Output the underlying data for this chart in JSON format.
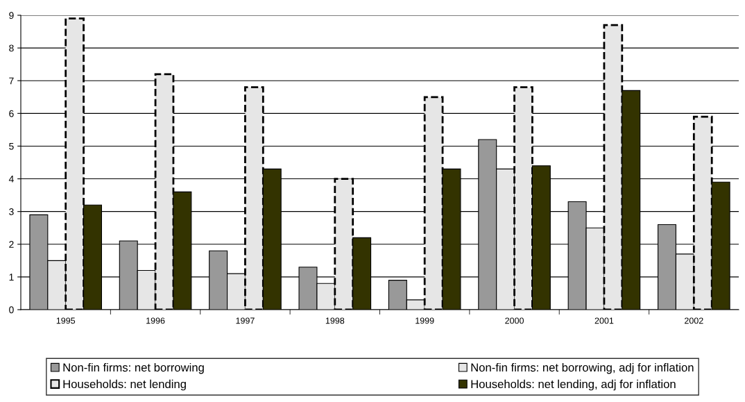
{
  "chart_data": {
    "type": "bar",
    "categories": [
      "1995",
      "1996",
      "1997",
      "1998",
      "1999",
      "2000",
      "2001",
      "2002"
    ],
    "series": [
      {
        "name": "Non-fin firms: net borrowing",
        "color": "#999999",
        "values": [
          2.9,
          2.1,
          1.8,
          1.3,
          0.9,
          5.2,
          3.3,
          2.6
        ]
      },
      {
        "name": "Non-fin firms: net borrowing, adj for inflation",
        "color": "#e6e6e6",
        "values": [
          1.5,
          1.2,
          1.1,
          0.8,
          0.3,
          4.3,
          2.5,
          1.7
        ]
      },
      {
        "name": "Households: net lending",
        "color": "#e6e6e6",
        "line_style": "dashed",
        "values": [
          8.9,
          7.2,
          6.8,
          4.0,
          6.5,
          6.8,
          8.7,
          5.9
        ]
      },
      {
        "name": "Households: net lending, adj for inflation",
        "color": "#333300",
        "values": [
          3.2,
          3.6,
          4.3,
          2.2,
          4.3,
          4.4,
          6.7,
          3.9
        ]
      }
    ],
    "ylim": [
      0,
      9
    ],
    "yticks": [
      0,
      1,
      2,
      3,
      4,
      5,
      6,
      7,
      8,
      9
    ],
    "grid": "y",
    "legend": "bottom"
  }
}
